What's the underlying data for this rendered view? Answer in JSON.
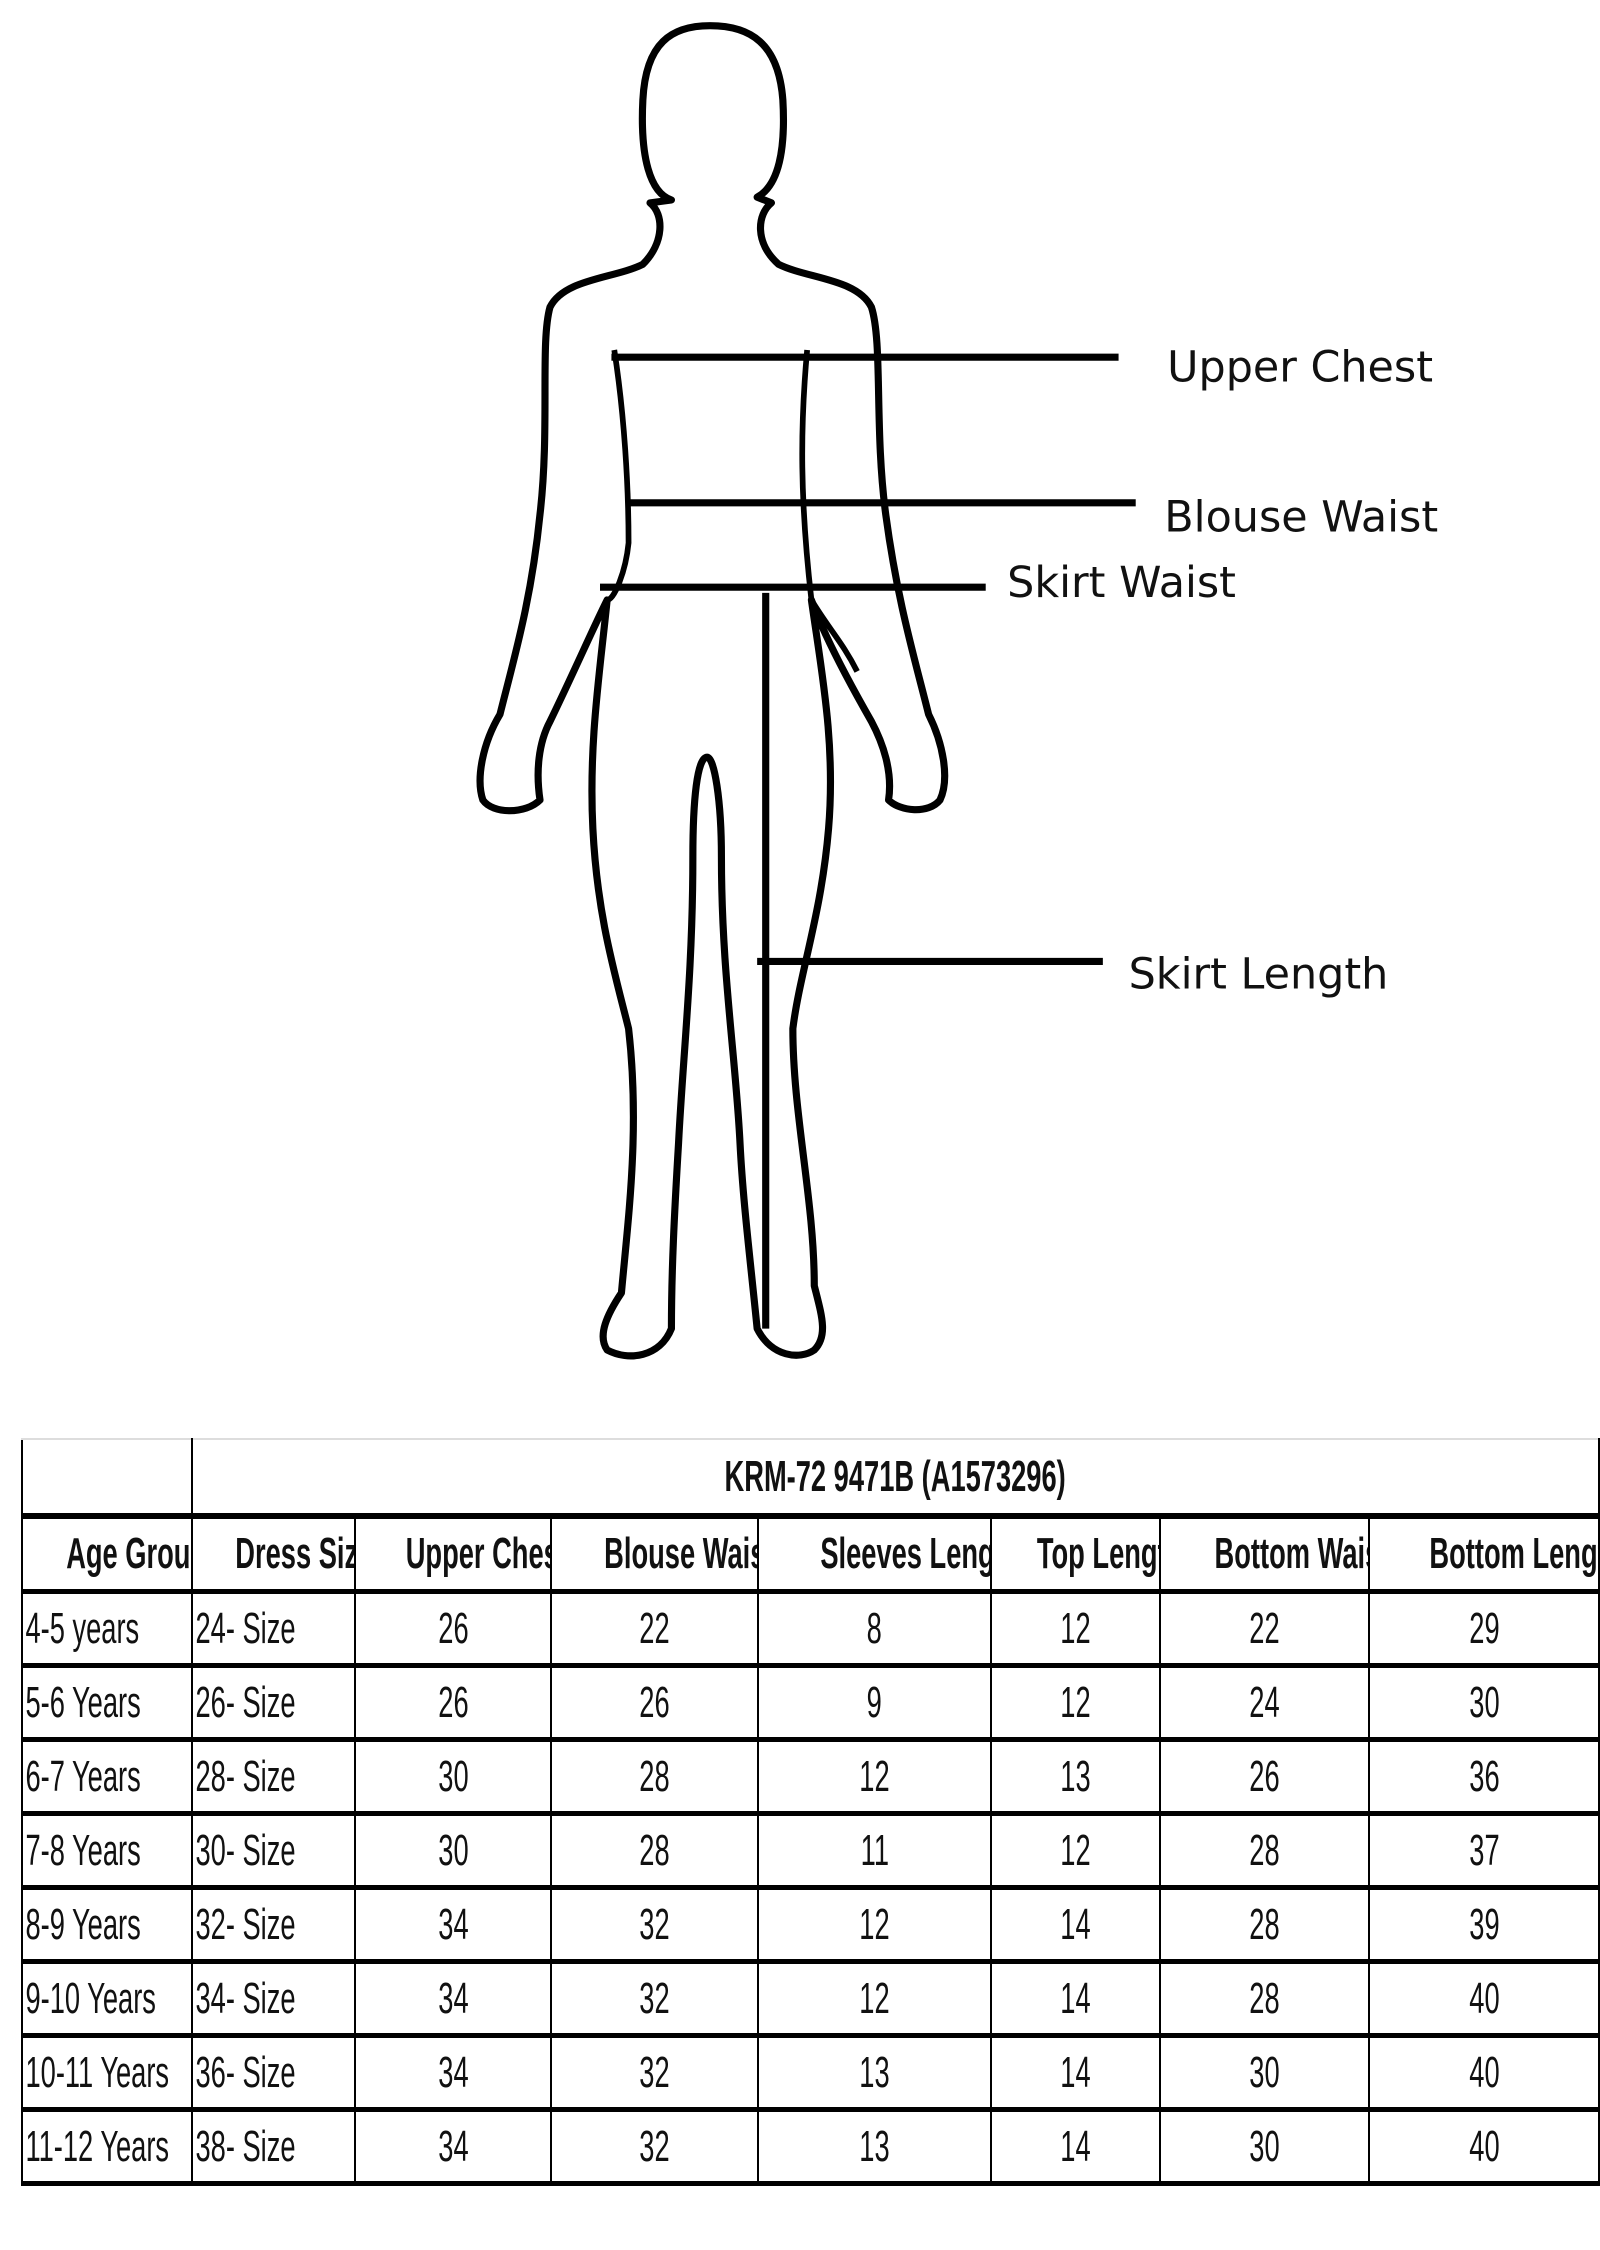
{
  "figure": {
    "labels": {
      "upper_chest": "Upper Chest",
      "blouse_waist": "Blouse Waist",
      "skirt_waist": "Skirt Waist",
      "skirt_length": "Skirt Length"
    }
  },
  "table": {
    "title": "KRM-72 9471B (A1573296)",
    "headers": [
      "Age Group",
      "Dress Size",
      "Upper Chest",
      "Blouse Waist",
      "Sleeves Length",
      "Top Length",
      "Bottom Waist",
      "Bottom Length"
    ],
    "rows": [
      [
        "4-5 years",
        "24- Size",
        "26",
        "22",
        "8",
        "12",
        "22",
        "29"
      ],
      [
        "5-6 Years",
        "26- Size",
        "26",
        "26",
        "9",
        "12",
        "24",
        "30"
      ],
      [
        "6-7 Years",
        "28- Size",
        "30",
        "28",
        "12",
        "13",
        "26",
        "36"
      ],
      [
        "7-8 Years",
        "30- Size",
        "30",
        "28",
        "11",
        "12",
        "28",
        "37"
      ],
      [
        "8-9 Years",
        "32- Size",
        "34",
        "32",
        "12",
        "14",
        "28",
        "39"
      ],
      [
        "9-10 Years",
        "34- Size",
        "34",
        "32",
        "12",
        "14",
        "28",
        "40"
      ],
      [
        "10-11 Years",
        "36- Size",
        "34",
        "32",
        "13",
        "14",
        "30",
        "40"
      ],
      [
        "11-12 Years",
        "38- Size",
        "34",
        "32",
        "13",
        "14",
        "30",
        "40"
      ]
    ]
  }
}
